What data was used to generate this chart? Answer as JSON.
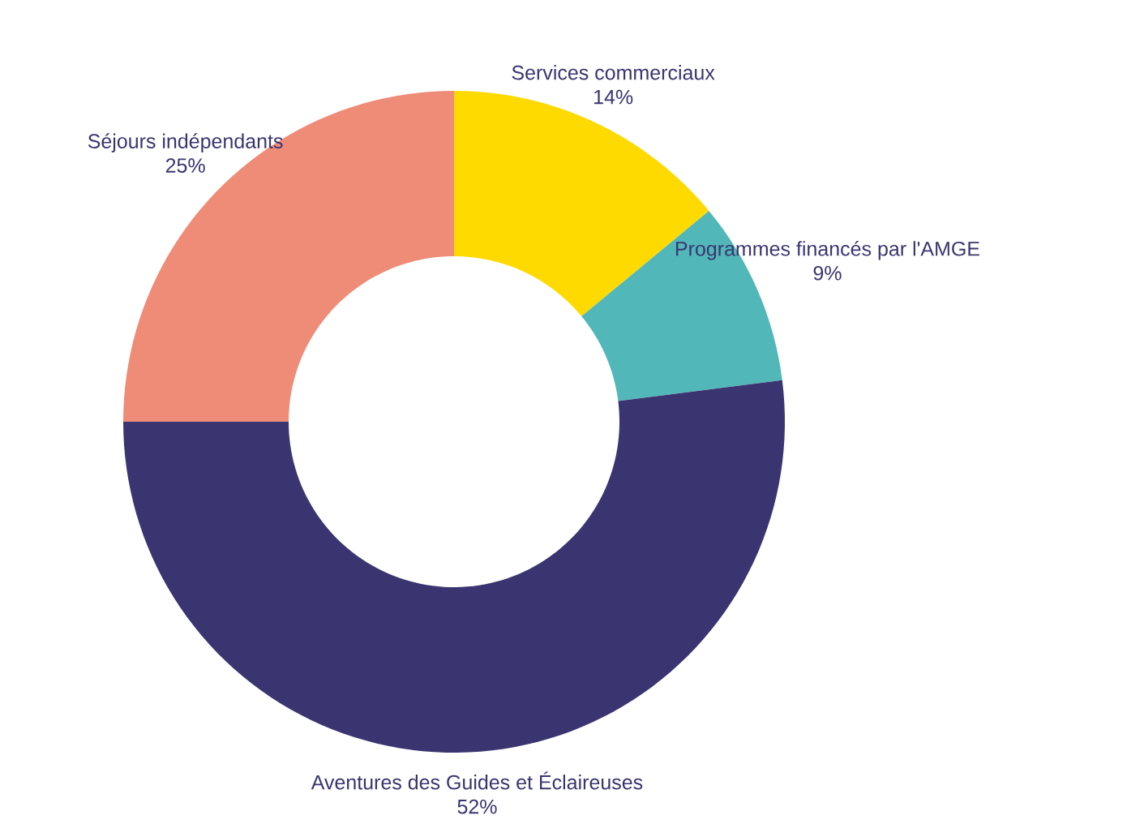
{
  "chart_data": {
    "type": "donut",
    "categories": [
      "Services commerciaux",
      "Programmes financés par l'AMGE",
      "Aventures des Guides et Éclaireuses",
      "Séjours indépendants"
    ],
    "values": [
      14,
      9,
      52,
      25
    ],
    "value_labels": [
      "14%",
      "9%",
      "52%",
      "25%"
    ],
    "colors": [
      "#ffda00",
      "#52b7b8",
      "#3a3570",
      "#ee8c78"
    ]
  }
}
